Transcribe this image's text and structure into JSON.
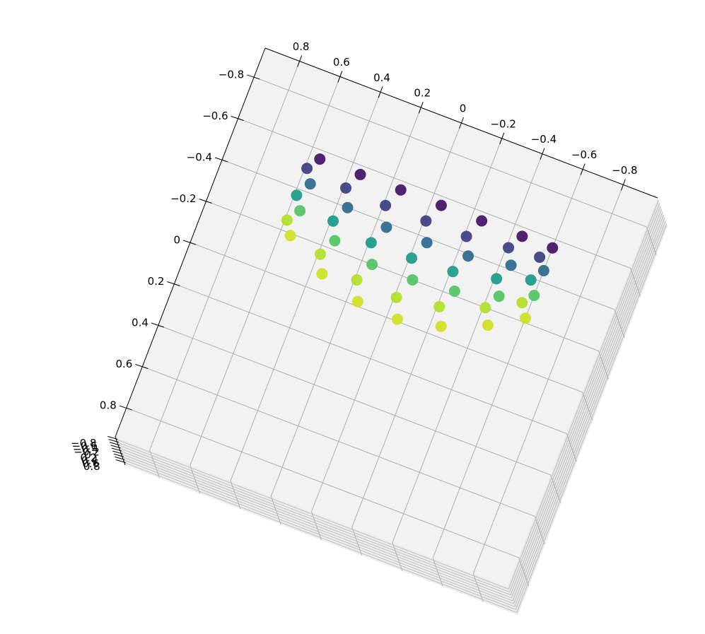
{
  "chart_data": {
    "type": "scatter3d",
    "colormap": "viridis",
    "grid": true,
    "xlim": [
      0.97,
      -0.97
    ],
    "ylim": [
      -0.94,
      0.94
    ],
    "zlim": [
      -0.97,
      0.97
    ],
    "xticks": [
      0.8,
      0.6,
      0.4,
      0.2,
      0.0,
      {
        "value": -0.2,
        "label": "−0.2"
      },
      {
        "value": -0.4,
        "label": "−0.4"
      },
      {
        "value": -0.6,
        "label": "−0.6"
      },
      {
        "value": -0.8,
        "label": "−0.8"
      }
    ],
    "yticks": [
      {
        "value": -0.8,
        "label": "−0.8"
      },
      {
        "value": -0.6,
        "label": "−0.6"
      },
      {
        "value": -0.4,
        "label": "−0.4"
      },
      {
        "value": -0.2,
        "label": "−0.2"
      },
      0.0,
      0.2,
      0.4,
      0.6,
      0.8
    ],
    "zticks": [
      {
        "value": -0.8,
        "label": "−0.8"
      },
      {
        "value": -0.6,
        "label": "−0.6"
      },
      {
        "value": -0.4,
        "label": "−0.4"
      },
      {
        "value": -0.2,
        "label": "−0.2"
      },
      0.0,
      0.2,
      0.4,
      0.6,
      0.8
    ],
    "x": [
      0.55,
      0.59,
      0.55,
      0.59,
      0.55,
      0.59,
      0.55,
      0.35,
      0.39,
      0.35,
      0.39,
      0.35,
      0.39,
      0.35,
      0.15,
      0.19,
      0.15,
      0.19,
      0.15,
      0.19,
      0.15,
      -0.05,
      -0.01,
      -0.05,
      -0.01,
      -0.05,
      -0.01,
      -0.05,
      -0.25,
      -0.21,
      -0.25,
      -0.21,
      -0.25,
      -0.21,
      -0.25,
      -0.45,
      -0.41,
      -0.45,
      -0.41,
      -0.45,
      -0.41,
      -0.45,
      -0.6,
      -0.56,
      -0.6,
      -0.56,
      -0.6,
      -0.56,
      -0.6
    ],
    "y": [
      -0.56,
      -0.5,
      -0.44,
      -0.37,
      -0.31,
      -0.25,
      -0.19,
      -0.56,
      -0.48,
      -0.4,
      -0.32,
      -0.24,
      -0.16,
      -0.08,
      -0.56,
      -0.47,
      -0.38,
      -0.29,
      -0.2,
      -0.11,
      -0.02,
      -0.56,
      -0.47,
      -0.38,
      -0.29,
      -0.2,
      -0.1,
      -0.01,
      -0.56,
      -0.47,
      -0.39,
      -0.3,
      -0.22,
      -0.13,
      -0.05,
      -0.56,
      -0.49,
      -0.42,
      -0.34,
      -0.27,
      -0.2,
      -0.13,
      -0.56,
      -0.5,
      -0.45,
      -0.39,
      -0.33,
      -0.28,
      -0.22
    ],
    "z": [
      -0.85,
      -0.6,
      -0.3,
      0.1,
      0.45,
      0.75,
      0.85,
      -0.85,
      -0.6,
      -0.3,
      0.1,
      0.45,
      0.75,
      0.85,
      -0.85,
      -0.6,
      -0.3,
      0.1,
      0.45,
      0.75,
      0.85,
      -0.85,
      -0.6,
      -0.3,
      0.1,
      0.45,
      0.75,
      0.85,
      -0.85,
      -0.6,
      -0.3,
      0.1,
      0.45,
      0.75,
      0.85,
      -0.85,
      -0.6,
      -0.3,
      0.1,
      0.45,
      0.75,
      0.85,
      -0.85,
      -0.6,
      -0.3,
      0.1,
      0.45,
      0.75,
      0.85
    ]
  }
}
